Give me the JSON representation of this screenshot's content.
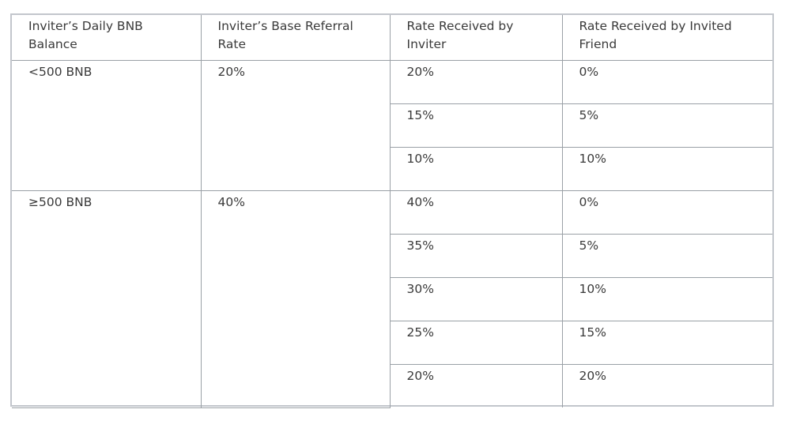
{
  "table": {
    "headers": [
      "Inviter’s Daily BNB Balance",
      "Inviter’s Base Referral Rate",
      "Rate Received by Inviter",
      "Rate Received by Invited Friend"
    ],
    "groups": [
      {
        "balance": "<500 BNB",
        "base_rate": "20%",
        "splits": [
          {
            "inviter": "20%",
            "friend": "0%"
          },
          {
            "inviter": "15%",
            "friend": "5%"
          },
          {
            "inviter": "10%",
            "friend": "10%"
          }
        ]
      },
      {
        "balance": "≥500 BNB",
        "base_rate": "40%",
        "splits": [
          {
            "inviter": "40%",
            "friend": "0%"
          },
          {
            "inviter": "35%",
            "friend": "5%"
          },
          {
            "inviter": "30%",
            "friend": "10%"
          },
          {
            "inviter": "25%",
            "friend": "15%"
          },
          {
            "inviter": "20%",
            "friend": "20%"
          }
        ]
      }
    ]
  }
}
